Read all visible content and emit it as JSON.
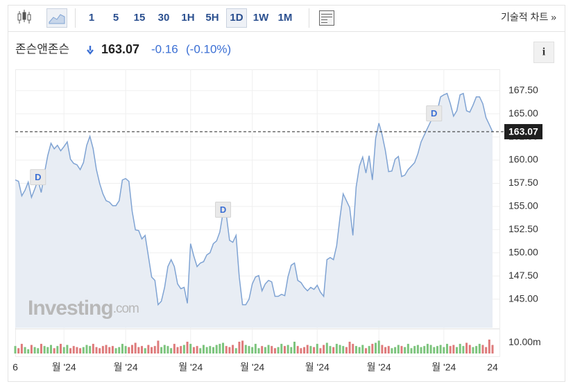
{
  "toolbar": {
    "intervals": [
      "1",
      "5",
      "15",
      "30",
      "1H",
      "5H",
      "1D",
      "1W",
      "1M"
    ],
    "active": "1D",
    "link": "기술적 차트 »"
  },
  "header": {
    "name": "존슨앤존슨",
    "price": "163.07",
    "change": "-0.16",
    "change_pct": "(-0.10%)",
    "info": "i"
  },
  "logo": {
    "main": "Investing",
    "suffix": ".com"
  },
  "chart_data": {
    "type": "area",
    "categories": [
      "6",
      null,
      null,
      null,
      null,
      null,
      null,
      null,
      null,
      null,
      null,
      null,
      null,
      null,
      null,
      "월 '24",
      null,
      null,
      null,
      null,
      null,
      null,
      null,
      null,
      null,
      null,
      null,
      null,
      null,
      null,
      null,
      null,
      null,
      null,
      "월 '24",
      null,
      null,
      null,
      null,
      null,
      null,
      null,
      null,
      null,
      null,
      null,
      null,
      null,
      null,
      null,
      null,
      null,
      null,
      null,
      "월 '24",
      null,
      null,
      null,
      null,
      null,
      null,
      null,
      null,
      null,
      null,
      null,
      null,
      null,
      null,
      null,
      null,
      null,
      null,
      "월 '24",
      null,
      null,
      null,
      null,
      null,
      null,
      null,
      null,
      null,
      null,
      null,
      null,
      null,
      null,
      null,
      null,
      null,
      null,
      null,
      "월 '24",
      null,
      null,
      null,
      null,
      null,
      null,
      null,
      null,
      null,
      null,
      null,
      null,
      null,
      null,
      null,
      null,
      null,
      null,
      "월 '24",
      null,
      null,
      null,
      null,
      null,
      null,
      null,
      null,
      null,
      null,
      null,
      null,
      null,
      null,
      null,
      null,
      null,
      null,
      null,
      "월 '24",
      null,
      null,
      null,
      null,
      null,
      null,
      null,
      null,
      null,
      null,
      null,
      null,
      null,
      null,
      "24"
    ],
    "series": [
      {
        "name": "존슨앤존슨",
        "color": "#7fa3d3",
        "fill": "#e8edf4",
        "values": [
          157.86,
          157.71,
          156.14,
          156.74,
          157.63,
          155.99,
          156.89,
          157.86,
          156.51,
          158.61,
          160.48,
          161.82,
          161.22,
          161.6,
          161.0,
          161.45,
          161.97,
          160.1,
          159.65,
          159.5,
          158.98,
          159.73,
          161.6,
          162.57,
          161.22,
          158.98,
          157.48,
          156.36,
          155.62,
          155.47,
          155.09,
          155.09,
          155.62,
          157.86,
          158.01,
          157.71,
          154.49,
          152.48,
          152.4,
          151.5,
          151.88,
          149.64,
          147.39,
          147.02,
          144.4,
          144.78,
          146.27,
          148.51,
          149.26,
          148.51,
          146.64,
          146.12,
          146.27,
          144.55,
          150.98,
          149.64,
          148.51,
          148.89,
          149.04,
          149.78,
          150.01,
          150.98,
          151.28,
          152.25,
          154.35,
          154.12,
          151.35,
          151.13,
          151.88,
          147.39,
          144.4,
          144.4,
          145.0,
          146.64,
          147.39,
          147.54,
          145.9,
          146.64,
          147.02,
          146.87,
          145.3,
          145.3,
          145.52,
          145.37,
          147.39,
          148.66,
          148.89,
          147.02,
          146.79,
          146.27,
          145.9,
          146.27,
          146.05,
          146.5,
          145.75,
          145.3,
          149.26,
          149.49,
          149.26,
          150.76,
          153.75,
          156.36,
          155.62,
          154.87,
          151.88,
          157.11,
          159.35,
          160.33,
          158.61,
          160.48,
          157.86,
          162.34,
          163.99,
          162.72,
          161.0,
          158.76,
          158.83,
          160.1,
          160.4,
          158.23,
          158.38,
          158.98,
          159.35,
          159.73,
          160.7,
          161.97,
          162.72,
          163.47,
          164.21,
          164.74,
          165.33,
          166.83,
          167.05,
          167.2,
          166.08,
          164.74,
          165.33,
          167.05,
          167.2,
          165.33,
          165.18,
          165.93,
          166.83,
          166.83,
          166.08,
          164.59,
          163.84,
          163.07
        ]
      }
    ],
    "ylim": [
      141.9,
      169.8
    ],
    "yticks": [
      {
        "value": 145,
        "label": "145.00"
      },
      {
        "value": 147.5,
        "label": "147.50"
      },
      {
        "value": 150,
        "label": "150.00"
      },
      {
        "value": 152.5,
        "label": "152.50"
      },
      {
        "value": 155,
        "label": "155.00"
      },
      {
        "value": 157.5,
        "label": "157.50"
      },
      {
        "value": 160,
        "label": "160.00"
      },
      {
        "value": 162.5,
        "label": "162.50"
      },
      {
        "value": 165,
        "label": "165.00"
      },
      {
        "value": 167.5,
        "label": "167.50"
      }
    ],
    "grid": true,
    "last_value": {
      "value": 163.07,
      "label": "163.07"
    },
    "annotations": [
      {
        "label": "D",
        "index": 7
      },
      {
        "label": "D",
        "index": 64
      },
      {
        "label": "D",
        "index": 129
      }
    ],
    "volume": {
      "up_color": "#7dc47d",
      "down_color": "#de7b7b",
      "ylim": [
        0,
        22
      ],
      "yticks": [
        {
          "value": 10,
          "label": "10.00m"
        }
      ],
      "values": [
        7,
        5,
        9,
        6,
        4,
        8,
        6,
        5,
        9,
        7,
        6,
        8,
        5,
        7,
        9,
        6,
        8,
        5,
        7,
        6,
        5,
        6,
        8,
        7,
        9,
        6,
        5,
        7,
        8,
        6,
        7,
        5,
        6,
        9,
        7,
        6,
        8,
        10,
        6,
        7,
        5,
        8,
        6,
        7,
        12,
        6,
        8,
        7,
        5,
        9,
        6,
        7,
        8,
        11,
        9,
        6,
        7,
        5,
        8,
        6,
        7,
        6,
        8,
        9,
        10,
        7,
        6,
        8,
        5,
        11,
        12,
        8,
        7,
        6,
        9,
        5,
        7,
        6,
        8,
        7,
        5,
        6,
        9,
        7,
        8,
        6,
        11,
        7,
        5,
        6,
        8,
        7,
        6,
        9,
        5,
        8,
        10,
        7,
        6,
        9,
        8,
        7,
        6,
        11,
        9,
        7,
        6,
        8,
        5,
        7,
        9,
        10,
        12,
        8,
        6,
        7,
        5,
        6,
        8,
        7,
        6,
        9,
        5,
        7,
        8,
        6,
        7,
        9,
        8,
        6,
        7,
        8,
        6,
        9,
        7,
        8,
        6,
        9,
        7,
        10,
        8,
        6,
        7,
        9,
        8,
        6,
        13,
        8
      ]
    }
  }
}
